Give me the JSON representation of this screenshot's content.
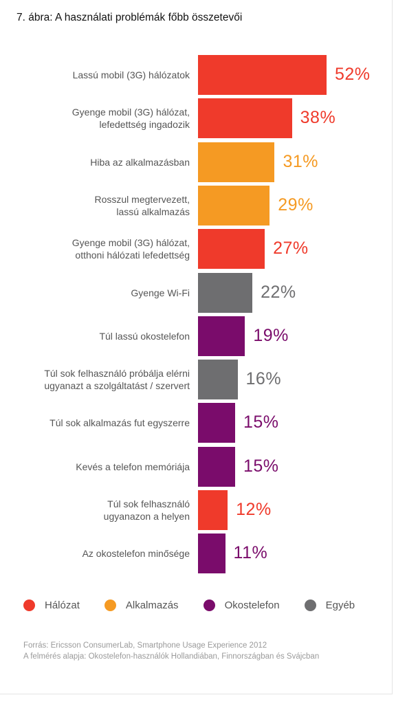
{
  "chart_data": {
    "type": "bar",
    "orientation": "horizontal",
    "title": "7. ábra: A használati problémák főbb összetevői",
    "categories": [
      [
        "Lassú mobil (3G) hálózatok"
      ],
      [
        "Gyenge mobil (3G) hálózat,",
        "lefedettség ingadozik"
      ],
      [
        "Hiba az alkalmazásban"
      ],
      [
        "Rosszul megtervezett,",
        "lassú alkalmazás"
      ],
      [
        "Gyenge mobil (3G) hálózat,",
        "otthoni hálózati lefedettség"
      ],
      [
        "Gyenge Wi-Fi"
      ],
      [
        "Túl lassú okostelefon"
      ],
      [
        "Túl sok felhasználó próbálja elérni",
        "ugyanazt a szolgáltatást / szervert"
      ],
      [
        "Túl sok alkalmazás fut egyszerre"
      ],
      [
        "Kevés a telefon memóriája"
      ],
      [
        "Túl sok felhasználó",
        "ugyanazon a helyen"
      ],
      [
        "Az okostelefon minősége"
      ]
    ],
    "values": [
      52,
      38,
      31,
      29,
      27,
      22,
      19,
      16,
      15,
      15,
      12,
      11
    ],
    "value_labels": [
      "52%",
      "38%",
      "31%",
      "29%",
      "27%",
      "22%",
      "19%",
      "16%",
      "15%",
      "15%",
      "12%",
      "11%"
    ],
    "groups": [
      "Hálózat",
      "Hálózat",
      "Alkalmazás",
      "Alkalmazás",
      "Hálózat",
      "Egyéb",
      "Okostelefon",
      "Egyéb",
      "Okostelefon",
      "Okostelefon",
      "Hálózat",
      "Okostelefon"
    ],
    "legend": [
      {
        "name": "Hálózat",
        "color": "#ef3a2b"
      },
      {
        "name": "Alkalmazás",
        "color": "#f59a23"
      },
      {
        "name": "Okostelefon",
        "color": "#7a0c6b"
      },
      {
        "name": "Egyéb",
        "color": "#6e6e70"
      }
    ],
    "legend_position": "bottom",
    "grid": false,
    "xlim": [
      0,
      52
    ]
  },
  "source": [
    "Forrás: Ericsson ConsumerLab, Smartphone Usage Experience 2012",
    "A felmérés alapja: Okostelefon-használók Hollandiában, Finnországban és Svájcban"
  ]
}
